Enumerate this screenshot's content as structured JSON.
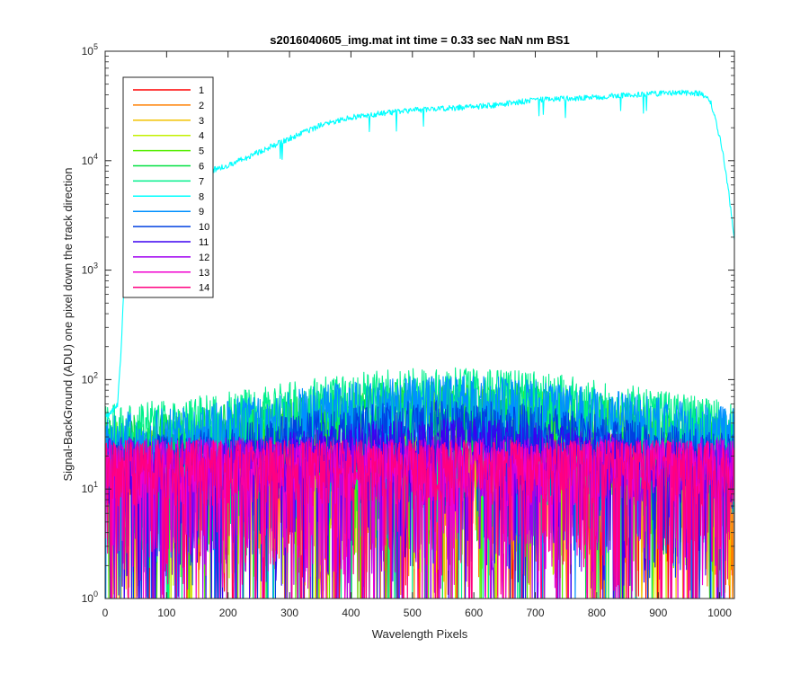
{
  "chart_data": {
    "type": "line",
    "title": "s2016040605_img.mat int time = 0.33 sec  NaN nm BS1",
    "xlabel": "Wavelength Pixels",
    "ylabel": "Signal-BackGround (ADU) one pixel down the track direction",
    "xlim": [
      0,
      1024
    ],
    "ylim": [
      1,
      100000
    ],
    "yscale": "log",
    "x_ticks": [
      "0",
      "100",
      "200",
      "300",
      "400",
      "500",
      "600",
      "700",
      "800",
      "900",
      "1000"
    ],
    "y_ticks": [
      {
        "base": "10",
        "exp": "0"
      },
      {
        "base": "10",
        "exp": "1"
      },
      {
        "base": "10",
        "exp": "2"
      },
      {
        "base": "10",
        "exp": "3"
      },
      {
        "base": "10",
        "exp": "4"
      },
      {
        "base": "10",
        "exp": "5"
      }
    ],
    "grid": false,
    "legend_position": "top-left",
    "series": [
      {
        "name": "1",
        "color": "#ff0000",
        "profile": "noise",
        "peak": 35,
        "center": 0
      },
      {
        "name": "2",
        "color": "#ff7f00",
        "profile": "noise",
        "peak": 32,
        "center": 0
      },
      {
        "name": "3",
        "color": "#f2c200",
        "profile": "noise",
        "peak": 32,
        "center": 0
      },
      {
        "name": "4",
        "color": "#c4f000",
        "profile": "noise",
        "peak": 33,
        "center": 0
      },
      {
        "name": "5",
        "color": "#55ee00",
        "profile": "hump",
        "peak": 90,
        "center": 560
      },
      {
        "name": "6",
        "color": "#00e040",
        "profile": "hump",
        "peak": 100,
        "center": 560
      },
      {
        "name": "7",
        "color": "#00f08c",
        "profile": "hump",
        "peak": 130,
        "center": 560
      },
      {
        "name": "8",
        "color": "#00ffff",
        "profile": "bright",
        "points": [
          [
            0,
            45
          ],
          [
            10,
            50
          ],
          [
            20,
            60
          ],
          [
            25,
            150
          ],
          [
            30,
            600
          ],
          [
            35,
            1500
          ],
          [
            40,
            3000
          ],
          [
            50,
            4500
          ],
          [
            75,
            5500
          ],
          [
            100,
            6500
          ],
          [
            150,
            7500
          ],
          [
            200,
            9000
          ],
          [
            250,
            12000
          ],
          [
            300,
            16000
          ],
          [
            350,
            21000
          ],
          [
            400,
            25000
          ],
          [
            450,
            27000
          ],
          [
            500,
            29000
          ],
          [
            550,
            30000
          ],
          [
            600,
            31000
          ],
          [
            650,
            33000
          ],
          [
            700,
            36000
          ],
          [
            750,
            37000
          ],
          [
            800,
            38000
          ],
          [
            850,
            40000
          ],
          [
            900,
            41000
          ],
          [
            950,
            42000
          ],
          [
            970,
            41000
          ],
          [
            985,
            35000
          ],
          [
            995,
            22000
          ],
          [
            1005,
            12000
          ],
          [
            1015,
            5000
          ],
          [
            1024,
            1900
          ]
        ]
      },
      {
        "name": "9",
        "color": "#0090ff",
        "profile": "hump",
        "peak": 110,
        "center": 560
      },
      {
        "name": "10",
        "color": "#0040e0",
        "profile": "hump",
        "peak": 65,
        "center": 560
      },
      {
        "name": "11",
        "color": "#3c00f0",
        "profile": "hump",
        "peak": 45,
        "center": 560
      },
      {
        "name": "12",
        "color": "#a000f0",
        "profile": "noise",
        "peak": 30,
        "center": 0
      },
      {
        "name": "13",
        "color": "#f000d0",
        "profile": "noise",
        "peak": 28,
        "center": 0
      },
      {
        "name": "14",
        "color": "#ff0080",
        "profile": "noise",
        "peak": 28,
        "center": 0
      }
    ]
  }
}
